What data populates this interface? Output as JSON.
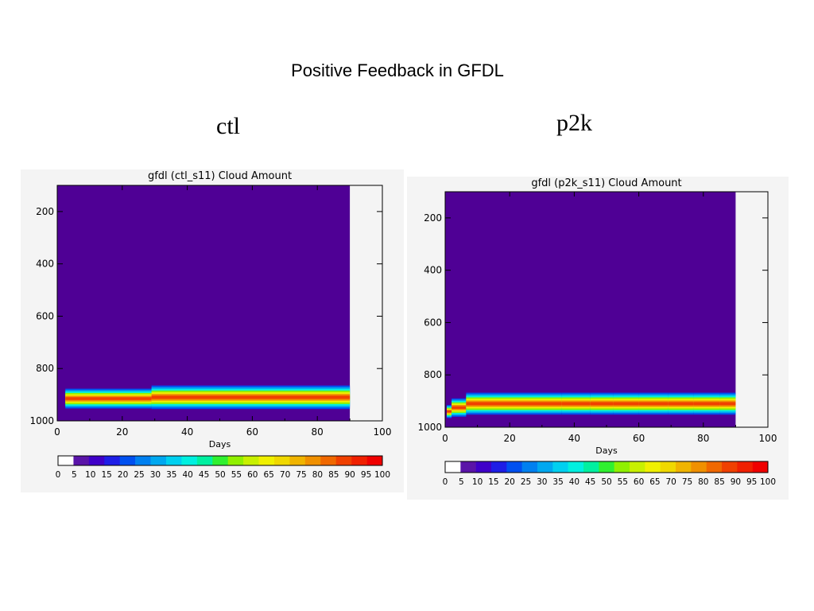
{
  "slide_title": "Positive Feedback in GFDL",
  "panel_labels": [
    "ctl",
    "p2k"
  ],
  "chart_data": [
    {
      "type": "heatmap",
      "title": "gfdl (ctl_s11) Cloud Amount",
      "xlabel": "Days",
      "ylabel": "",
      "xlim": [
        0,
        100
      ],
      "ylim": [
        1000,
        100
      ],
      "x_ticks": [
        0,
        20,
        40,
        60,
        80,
        100
      ],
      "y_ticks": [
        200,
        400,
        600,
        800,
        1000
      ],
      "data_x_extent": [
        0,
        90
      ],
      "colorbar_ticks": [
        0,
        5,
        10,
        15,
        20,
        25,
        30,
        35,
        40,
        45,
        50,
        55,
        60,
        65,
        70,
        75,
        80,
        85,
        90,
        95,
        100
      ],
      "cloud_layer": {
        "segments": [
          {
            "x_start": 2.5,
            "x_end": 29,
            "pressure_center": 915,
            "pressure_half_width": 38
          },
          {
            "x_start": 29,
            "x_end": 90,
            "pressure_center": 910,
            "pressure_half_width": 45
          }
        ],
        "peak_value": 80
      }
    },
    {
      "type": "heatmap",
      "title": "gfdl (p2k_s11) Cloud Amount",
      "xlabel": "Days",
      "ylabel": "",
      "xlim": [
        0,
        100
      ],
      "ylim": [
        1000,
        100
      ],
      "x_ticks": [
        0,
        20,
        40,
        60,
        80,
        100
      ],
      "y_ticks": [
        200,
        400,
        600,
        800,
        1000
      ],
      "data_x_extent": [
        0,
        90
      ],
      "colorbar_ticks": [
        0,
        5,
        10,
        15,
        20,
        25,
        30,
        35,
        40,
        45,
        50,
        55,
        60,
        65,
        70,
        75,
        80,
        85,
        90,
        95,
        100
      ],
      "cloud_layer": {
        "segments": [
          {
            "x_start": 0.5,
            "x_end": 2,
            "pressure_center": 940,
            "pressure_half_width": 25
          },
          {
            "x_start": 2,
            "x_end": 6.5,
            "pressure_center": 925,
            "pressure_half_width": 35
          },
          {
            "x_start": 6.5,
            "x_end": 36,
            "pressure_center": 910,
            "pressure_half_width": 42
          },
          {
            "x_start": 36,
            "x_end": 45,
            "pressure_center": 910,
            "pressure_half_width": 42
          },
          {
            "x_start": 45,
            "x_end": 52,
            "pressure_center": 910,
            "pressure_half_width": 42
          },
          {
            "x_start": 52,
            "x_end": 60,
            "pressure_center": 910,
            "pressure_half_width": 42
          },
          {
            "x_start": 60,
            "x_end": 69,
            "pressure_center": 910,
            "pressure_half_width": 42
          },
          {
            "x_start": 69,
            "x_end": 77,
            "pressure_center": 910,
            "pressure_half_width": 42
          },
          {
            "x_start": 77,
            "x_end": 85,
            "pressure_center": 910,
            "pressure_half_width": 42
          },
          {
            "x_start": 85,
            "x_end": 90,
            "pressure_center": 910,
            "pressure_half_width": 42
          }
        ],
        "peak_value": 80
      }
    }
  ],
  "colors": {
    "background_field": "#4f0095",
    "colorscale": [
      "#ffffff",
      "#5a14a8",
      "#3f00c8",
      "#1e1ee6",
      "#0050f0",
      "#0080f0",
      "#00a8f0",
      "#00d0f0",
      "#00f0e0",
      "#00f0a0",
      "#30f030",
      "#90f000",
      "#c8f000",
      "#f0f000",
      "#f0d800",
      "#f0b400",
      "#f09000",
      "#f06800",
      "#f04000",
      "#f02000",
      "#f00000"
    ]
  }
}
